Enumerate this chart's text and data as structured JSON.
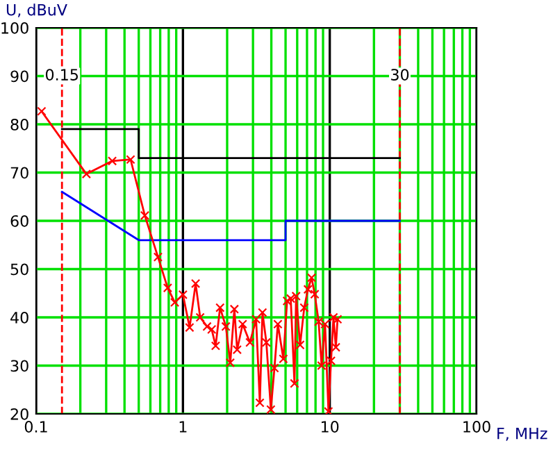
{
  "chart_data": {
    "type": "line",
    "xlabel": "F, MHz",
    "ylabel": "U, dBuV",
    "log": "x",
    "grid": true,
    "xlim": [
      0.1,
      100
    ],
    "ylim": [
      20,
      100
    ],
    "xticks": [
      0.1,
      {
        "value": 0.2,
        "label": null
      },
      {
        "value": 0.3,
        "label": null
      },
      {
        "value": 0.4,
        "label": null
      },
      {
        "value": 0.5,
        "label": null
      },
      {
        "value": 0.6,
        "label": null
      },
      {
        "value": 0.7,
        "label": null
      },
      {
        "value": 0.8,
        "label": null
      },
      {
        "value": 0.9,
        "label": null
      },
      1,
      {
        "value": 2,
        "label": null
      },
      {
        "value": 3,
        "label": null
      },
      {
        "value": 4,
        "label": null
      },
      {
        "value": 5,
        "label": null
      },
      {
        "value": 6,
        "label": null
      },
      {
        "value": 7,
        "label": null
      },
      {
        "value": 8,
        "label": null
      },
      {
        "value": 9,
        "label": null
      },
      10,
      {
        "value": 20,
        "label": null
      },
      {
        "value": 30,
        "label": null
      },
      {
        "value": 40,
        "label": null
      },
      {
        "value": 50,
        "label": null
      },
      {
        "value": 60,
        "label": null
      },
      {
        "value": 70,
        "label": null
      },
      {
        "value": 80,
        "label": null
      },
      {
        "value": 90,
        "label": null
      },
      100
    ],
    "yticks": [
      20,
      30,
      40,
      50,
      60,
      70,
      80,
      90,
      100
    ],
    "series": [
      {
        "color": "#000000",
        "marker": "none",
        "x": [
          0.15,
          0.5,
          0.5,
          30
        ],
        "values": [
          79,
          79,
          73,
          73
        ]
      },
      {
        "color": "#0000ff",
        "marker": "none",
        "x": [
          0.15,
          0.5,
          5,
          5,
          30
        ],
        "values": [
          66,
          56,
          56,
          60,
          60
        ]
      },
      {
        "color": "#ff0000",
        "marker": "cross",
        "x": [
          0.109,
          0.22,
          0.33,
          0.44,
          0.55,
          0.676,
          0.787,
          0.88,
          1.0,
          1.11,
          1.22,
          1.31,
          1.46,
          1.57,
          1.67,
          1.79,
          1.96,
          2.1,
          2.24,
          2.34,
          2.55,
          2.86,
          3.15,
          3.34,
          3.48,
          3.7,
          3.97,
          4.2,
          4.43,
          4.83,
          5.12,
          5.42,
          5.75,
          5.9,
          6.28,
          6.7,
          7.1,
          7.52,
          7.9,
          8.4,
          8.8,
          9.29,
          9.8,
          10.2,
          10.6,
          11.0,
          11.3
        ],
        "values": [
          82.7,
          69.7,
          72.4,
          72.7,
          61.1,
          52.5,
          46.1,
          43.1,
          44.7,
          37.9,
          47.0,
          40.0,
          38.1,
          37.5,
          34.1,
          42.0,
          38.1,
          30.6,
          41.7,
          33.3,
          38.6,
          34.8,
          39.6,
          22.3,
          41.0,
          34.8,
          20.9,
          29.5,
          38.6,
          31.4,
          43.4,
          43.9,
          26.3,
          44.4,
          34.3,
          42.0,
          45.8,
          48.2,
          44.8,
          39.1,
          30.0,
          38.6,
          20.5,
          31.0,
          40.0,
          33.8,
          39.6
        ]
      }
    ],
    "ref_lines": [
      {
        "axis": "x",
        "value": 0.15,
        "label": "0.15",
        "color": "#ff0000",
        "line_style": "dashed"
      },
      {
        "axis": "x",
        "value": 30,
        "label": "30",
        "color": "#ff0000",
        "line_style": "dashed"
      }
    ]
  }
}
